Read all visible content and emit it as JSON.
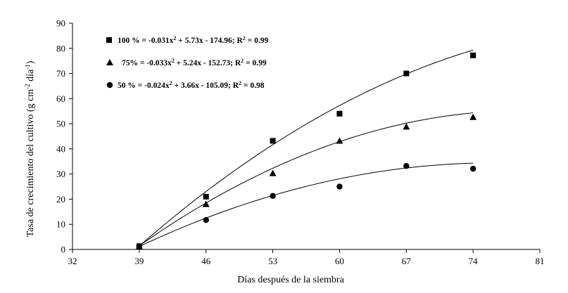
{
  "chart_data": {
    "type": "scatter",
    "xlabel": "Días después de la siembra",
    "ylabel": "Tasa de crecimiento del cultivo (g cm",
    "ylabel_sup1": "-2",
    "ylabel_mid": " día",
    "ylabel_sup2": "-1",
    "ylabel_end": ")",
    "xlim": [
      32,
      81
    ],
    "ylim": [
      0,
      90
    ],
    "xticks": [
      "32",
      "39",
      "46",
      "53",
      "60",
      "67",
      "74",
      "81"
    ],
    "yticks": [
      "0",
      "10",
      "20",
      "30",
      "40",
      "50",
      "60",
      "70",
      "80",
      "90"
    ],
    "grid": false,
    "legend_position": "top-left",
    "x": [
      39,
      46,
      53,
      60,
      67,
      74
    ],
    "series": [
      {
        "marker": "square",
        "values": [
          1.3,
          21,
          43.2,
          54,
          70,
          77.2
        ],
        "fit": [
          -0.031,
          5.73,
          -174.96
        ],
        "legend": {
          "pre": "100 % = -0.031x",
          "sup": "2",
          "post": " + 5.73x - 174.96; R",
          "sup2": "2",
          "end": " = 0.99"
        }
      },
      {
        "marker": "triangle",
        "values": [
          1.2,
          18,
          30.3,
          43.2,
          48.8,
          52.6
        ],
        "fit": [
          -0.033,
          5.24,
          -152.73
        ],
        "legend": {
          "pre": "75% = -0.033x",
          "sup": "2",
          "post": " + 5.24x - 152.73; R",
          "sup2": "2",
          "end": " = 0.99"
        }
      },
      {
        "marker": "circle",
        "values": [
          1.0,
          11.7,
          21.3,
          25,
          33.2,
          32.1
        ],
        "fit": [
          -0.024,
          3.66,
          -105.09
        ],
        "legend": {
          "pre": "50 % = -0.024x",
          "sup": "2",
          "post": " + 3.66x - 105.09; R",
          "sup2": "2",
          "end": " = 0.98"
        }
      }
    ],
    "colors": {
      "marks": "#000000",
      "background": "#ffffff"
    }
  }
}
